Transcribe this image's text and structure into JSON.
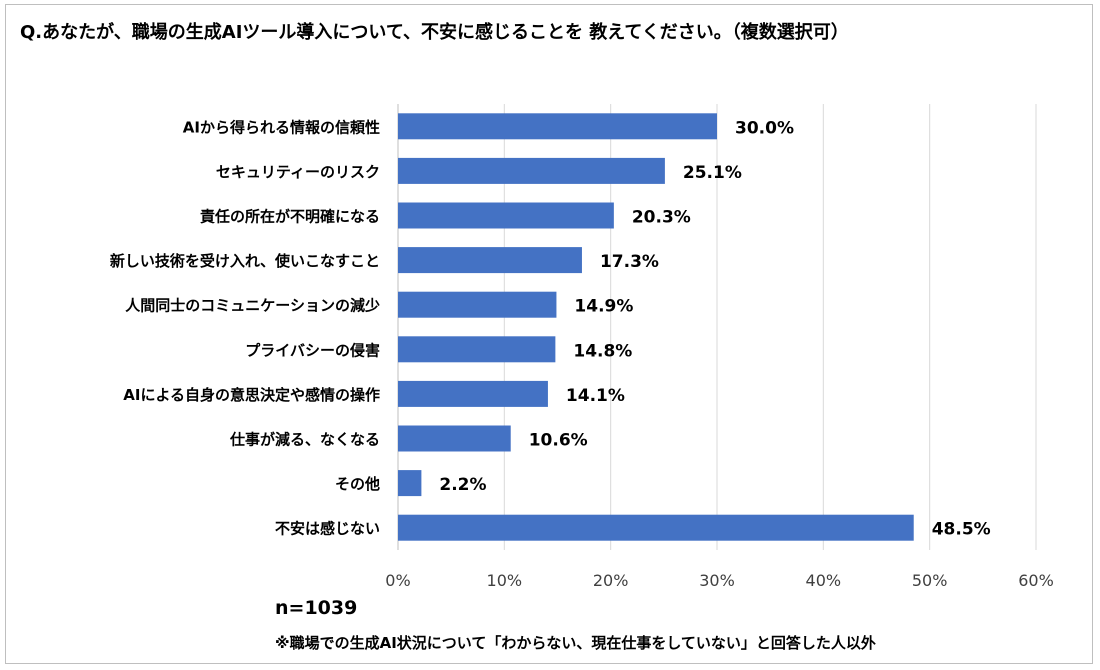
{
  "chart_data": {
    "type": "bar",
    "orientation": "horizontal",
    "title": "Q.あなたが、職場の生成AIツール導入について、不安に感じることを 教えてください。（複数選択可）",
    "categories": [
      "AIから得られる情報の信頼性",
      "セキュリティーのリスク",
      "責任の所在が不明確になる",
      "新しい技術を受け入れ、使いこなすこと",
      "人間同士のコミュニケーションの減少",
      "プライバシーの侵害",
      "AIによる自身の意思決定や感情の操作",
      "仕事が減る、なくなる",
      "その他",
      "不安は感じない"
    ],
    "values": [
      30.0,
      25.1,
      20.3,
      17.3,
      14.9,
      14.8,
      14.1,
      10.6,
      2.2,
      48.5
    ],
    "value_labels": [
      "30.0%",
      "25.1%",
      "20.3%",
      "17.3%",
      "14.9%",
      "14.8%",
      "14.1%",
      "10.6%",
      "2.2%",
      "48.5%"
    ],
    "xlim": [
      0,
      60
    ],
    "xticks": [
      0,
      10,
      20,
      30,
      40,
      50,
      60
    ],
    "xtick_labels": [
      "0%",
      "10%",
      "20%",
      "30%",
      "40%",
      "50%",
      "60%"
    ],
    "xlabel": "",
    "ylabel": "",
    "grid": true,
    "bar_color": "#4472c4",
    "grid_color": "#d9d9d9"
  },
  "sample_size": "n=1039",
  "footnote": "※職場での生成AI状況について「わからない、現在仕事をしていない」と回答した人以外"
}
